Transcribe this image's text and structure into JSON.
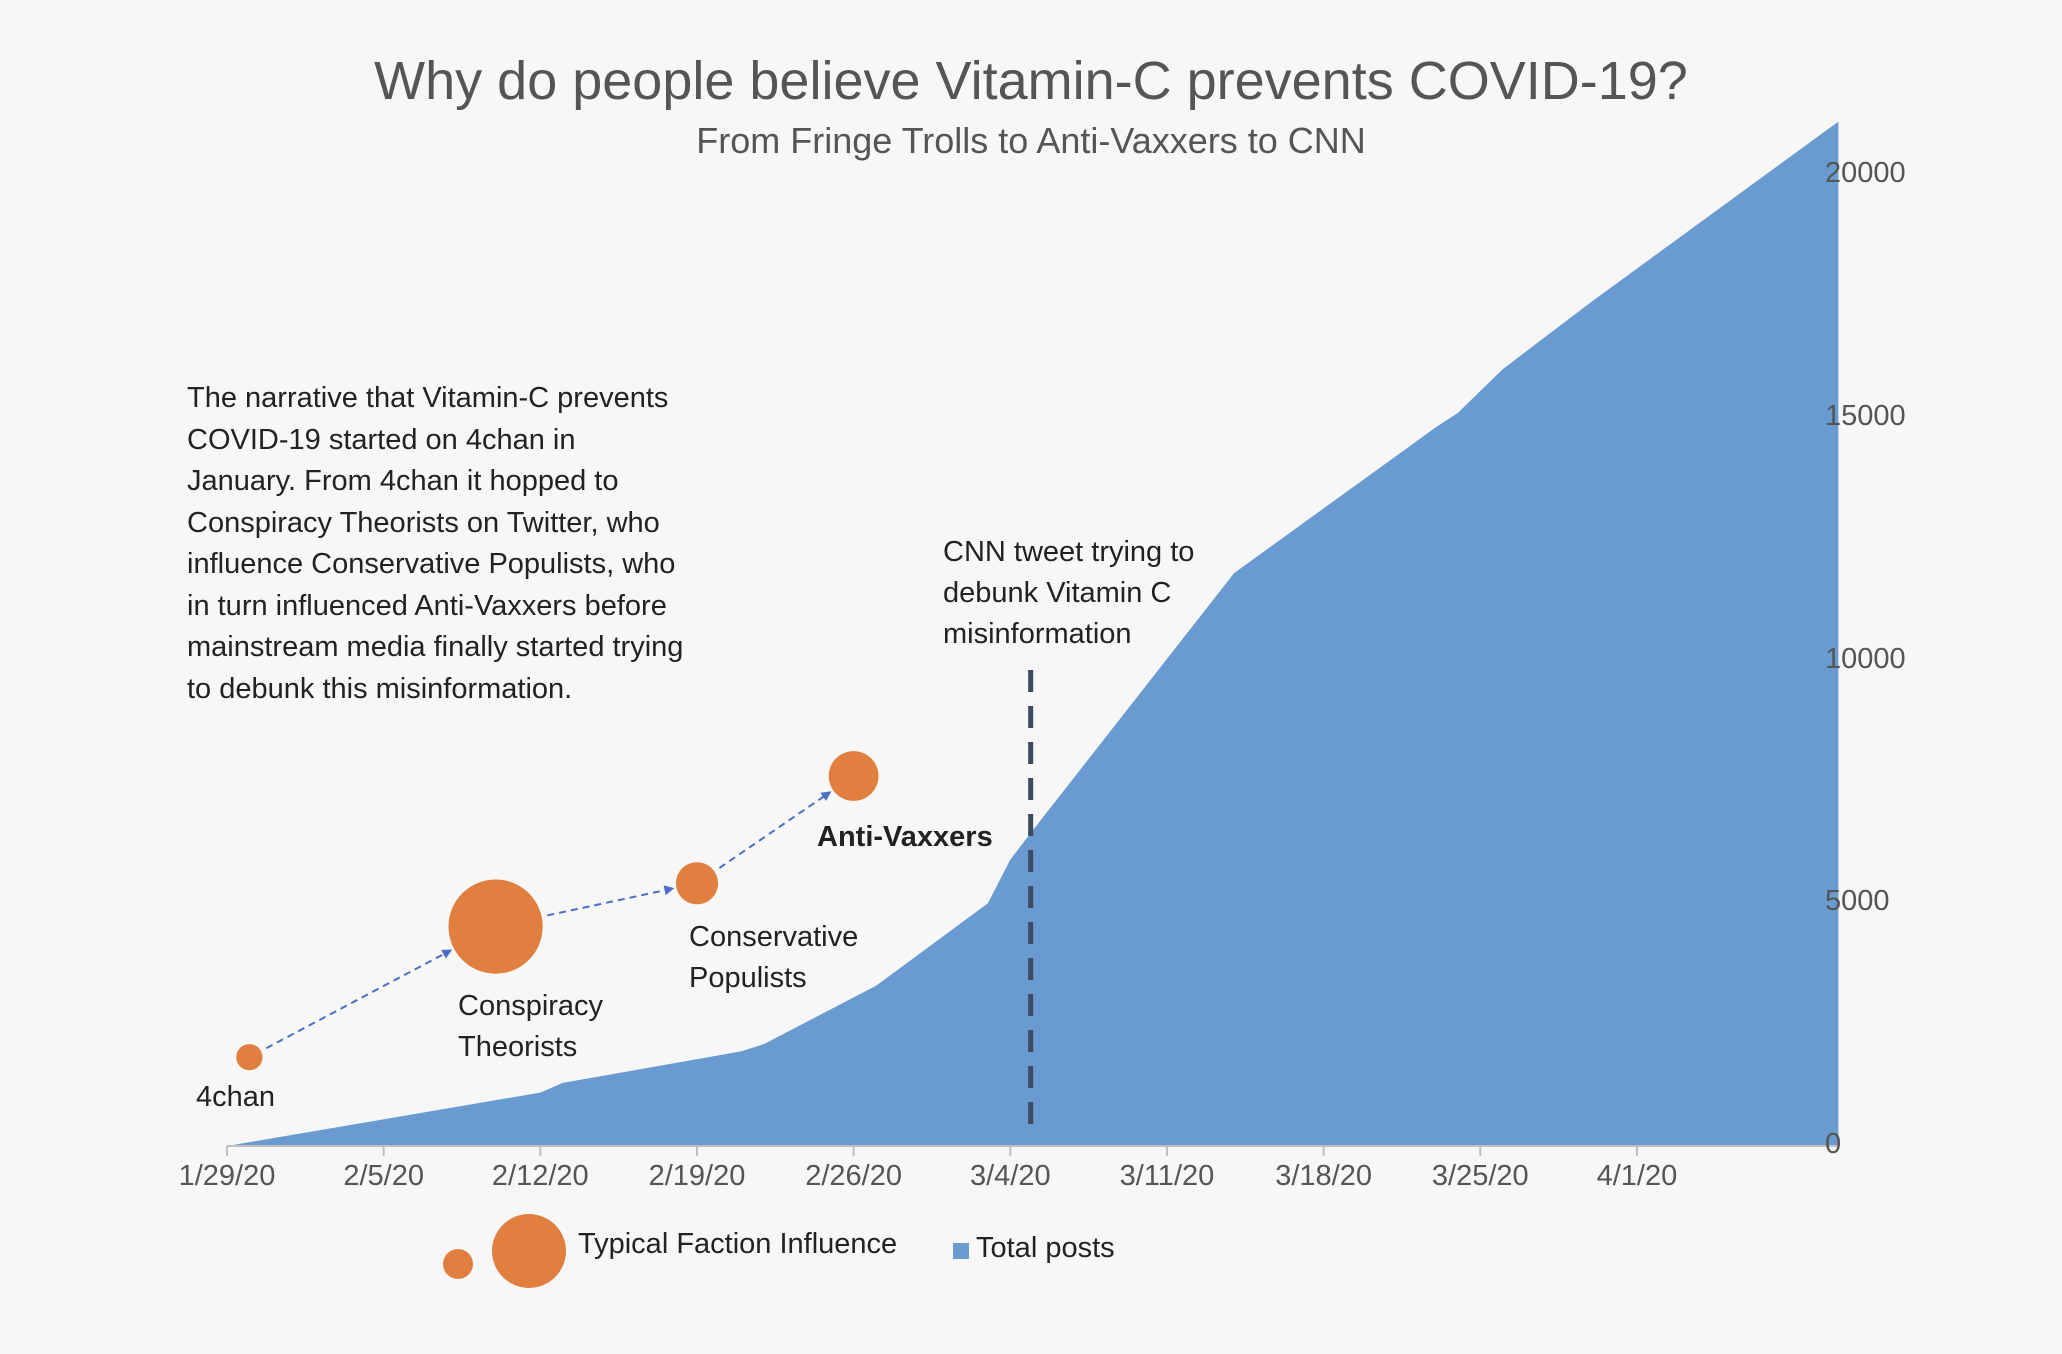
{
  "title": "Why do people believe Vitamin-C prevents COVID-19?",
  "subtitle": "From Fringe Trolls to Anti-Vaxxers to CNN",
  "narrative": "The narrative that Vitamin-C prevents COVID-19 started on 4chan in January. From 4chan it hopped to Conspiracy Theorists on Twitter, who influence Conservative Populists, who in turn influenced Anti-Vaxxers before mainstream media finally started trying to debunk this misinformation.",
  "annotation": "CNN tweet trying to debunk Vitamin C misinformation",
  "legend": {
    "bubble_label": "Typical Faction Influence",
    "area_label": "Total posts"
  },
  "colors": {
    "area": "#6a9bd0",
    "bubble": "#e07f3f",
    "arrow": "#4a6fc4",
    "dash_line": "#3b4a5c"
  },
  "chart_data": {
    "type": "area",
    "title": "Why do people believe Vitamin-C prevents COVID-19?",
    "subtitle": "From Fringe Trolls to Anti-Vaxxers to CNN",
    "xlabel": "",
    "ylabel": "",
    "x_ticks": [
      "1/29/20",
      "2/5/20",
      "2/12/20",
      "2/19/20",
      "2/26/20",
      "3/4/20",
      "3/11/20",
      "3/18/20",
      "3/25/20",
      "4/1/20"
    ],
    "y_ticks": [
      "0",
      "5000",
      "10000",
      "15000",
      "20000"
    ],
    "ylim": [
      0,
      21000
    ],
    "y_axis_side": "right",
    "grid": false,
    "legend_position": "bottom",
    "series": [
      {
        "name": "Total posts",
        "points": [
          [
            "1/29/20",
            0
          ],
          [
            "2/12/20",
            1100
          ],
          [
            "2/13/20",
            1300
          ],
          [
            "2/21/20",
            1950
          ],
          [
            "2/22/20",
            2100
          ],
          [
            "2/27/20",
            3300
          ],
          [
            "3/3/20",
            5000
          ],
          [
            "3/4/20",
            5900
          ],
          [
            "3/5/20",
            6500
          ],
          [
            "3/14/20",
            11800
          ],
          [
            "3/23/20",
            14800
          ],
          [
            "3/24/20",
            15100
          ],
          [
            "3/26/20",
            16000
          ],
          [
            "3/30/20",
            17400
          ],
          [
            "4/10/20",
            21100
          ]
        ]
      }
    ],
    "bubbles": [
      {
        "label": "4chan",
        "date": "1/30/20",
        "y": 1830,
        "size": 1.0
      },
      {
        "label": "Conspiracy Theorists",
        "date": "2/10/20",
        "y": 4520,
        "size": 12.9
      },
      {
        "label": "Conservative Populists",
        "date": "2/19/20",
        "y": 5410,
        "size": 2.6
      },
      {
        "label": "Anti-Vaxxers",
        "date": "2/26/20",
        "y": 7620,
        "size": 3.6
      }
    ],
    "event": {
      "date": "3/5/20",
      "label": "CNN tweet trying to debunk Vitamin C misinformation"
    }
  }
}
